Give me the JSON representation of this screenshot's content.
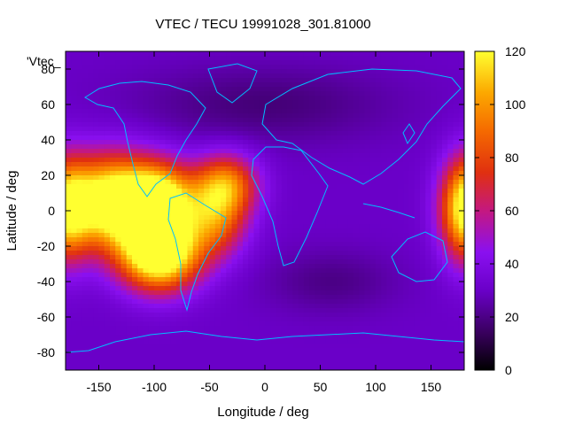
{
  "chart_data": {
    "type": "heatmap",
    "title": "VTEC / TECU 19991028_301.81000",
    "xlabel": "Longitude / deg",
    "ylabel": "Latitude / deg",
    "xlim": [
      -180,
      180
    ],
    "ylim": [
      -90,
      90
    ],
    "x_ticks": [
      "-150",
      "-100",
      "-50",
      "0",
      "50",
      "100",
      "150"
    ],
    "x_tick_values": [
      -150,
      -100,
      -50,
      0,
      50,
      100,
      150
    ],
    "y_ticks": [
      "80",
      "60",
      "40",
      "20",
      "0",
      "-20",
      "-40",
      "-60",
      "-80"
    ],
    "y_tick_values": [
      80,
      60,
      40,
      20,
      0,
      -20,
      -40,
      -60,
      -80
    ],
    "legend_label": "'Vtec_",
    "colorbar": {
      "range": [
        0,
        120
      ],
      "ticks": [
        "0",
        "20",
        "40",
        "60",
        "80",
        "100",
        "120"
      ],
      "tick_values": [
        0,
        20,
        40,
        60,
        80,
        100,
        120
      ],
      "palette": "black-purple-red-orange-yellow"
    },
    "background_level_tecu": 30,
    "features": [
      {
        "lon": -140,
        "lat": 5,
        "peak": 105,
        "sx": 28,
        "sy": 18
      },
      {
        "lon": -95,
        "lat": 5,
        "peak": 95,
        "sx": 22,
        "sy": 15
      },
      {
        "lon": -95,
        "lat": -25,
        "peak": 110,
        "sx": 25,
        "sy": 14
      },
      {
        "lon": -35,
        "lat": 15,
        "peak": 60,
        "sx": 20,
        "sy": 12
      },
      {
        "lon": -45,
        "lat": -5,
        "peak": 55,
        "sx": 20,
        "sy": 15
      },
      {
        "lon": 180,
        "lat": 0,
        "peak": 70,
        "sx": 15,
        "sy": 20
      },
      {
        "lon": 0,
        "lat": 60,
        "peak": -12,
        "sx": 80,
        "sy": 15
      },
      {
        "lon": 60,
        "lat": -40,
        "peak": -10,
        "sx": 40,
        "sy": 12
      }
    ],
    "overlay": "coastlines",
    "coastline_color": "#00bfff"
  }
}
